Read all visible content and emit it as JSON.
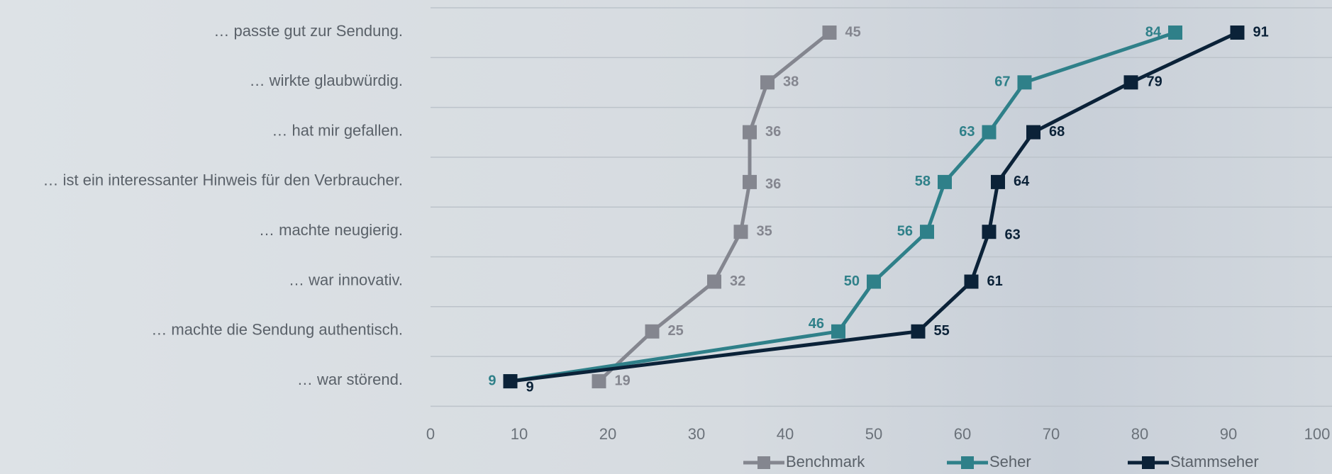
{
  "chart_data": {
    "type": "line",
    "categories": [
      "… passte gut zur Sendung.",
      "… wirkte glaubwürdig.",
      "… hat mir gefallen.",
      "… ist ein interessanter Hinweis für den Verbraucher.",
      "… machte neugierig.",
      "… war innovativ.",
      "… machte die Sendung authentisch.",
      "… war störend."
    ],
    "series": [
      {
        "name": "Benchmark",
        "color": "#84868f",
        "values": [
          45,
          38,
          36,
          36,
          35,
          32,
          25,
          19
        ]
      },
      {
        "name": "Seher",
        "color": "#2f8089",
        "values": [
          84,
          67,
          63,
          58,
          56,
          50,
          46,
          9
        ]
      },
      {
        "name": "Stammseher",
        "color": "#0b2238",
        "values": [
          91,
          79,
          68,
          64,
          63,
          61,
          55,
          9
        ]
      }
    ],
    "xlim": [
      0,
      100
    ],
    "xticks": [
      0,
      10,
      20,
      30,
      40,
      50,
      60,
      70,
      80,
      90,
      100
    ],
    "grid": true,
    "legend_position": "bottom"
  }
}
